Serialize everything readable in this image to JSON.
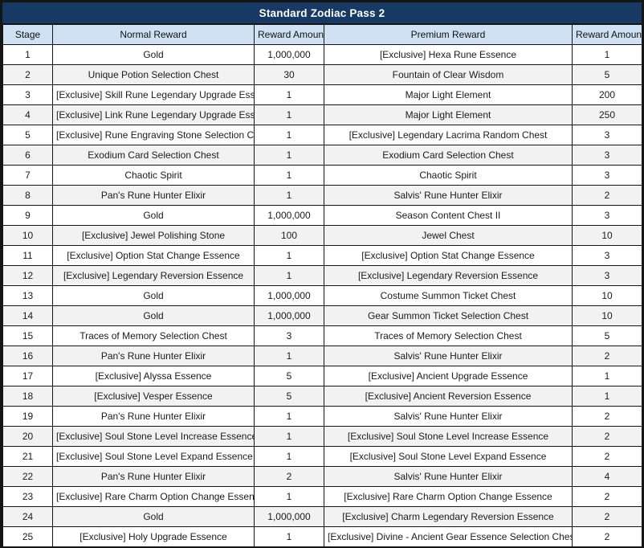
{
  "title_bar": {
    "title": "Standard Zodiac Pass 2"
  },
  "colors": {
    "title_bg": "#163a63",
    "title_text": "#ffffff",
    "header_bg": "#cfe1f3",
    "row_stripe_bg": "#f2f2f2",
    "border": "#151515"
  },
  "table": {
    "columns": [
      "Stage",
      "Normal Reward",
      "Reward Amount",
      "Premium Reward",
      "Reward Amount"
    ],
    "rows": [
      {
        "stage": "1",
        "normal_reward": "Gold",
        "normal_amount": "1,000,000",
        "premium_reward": "[Exclusive] Hexa Rune Essence",
        "premium_amount": "1"
      },
      {
        "stage": "2",
        "normal_reward": "Unique Potion Selection Chest",
        "normal_amount": "30",
        "premium_reward": "Fountain of Clear Wisdom",
        "premium_amount": "5"
      },
      {
        "stage": "3",
        "normal_reward": "[Exclusive] Skill Rune Legendary Upgrade Essence",
        "normal_amount": "1",
        "premium_reward": "Major Light Element",
        "premium_amount": "200"
      },
      {
        "stage": "4",
        "normal_reward": "[Exclusive] Link Rune Legendary Upgrade Essence",
        "normal_amount": "1",
        "premium_reward": "Major Light Element",
        "premium_amount": "250"
      },
      {
        "stage": "5",
        "normal_reward": "[Exclusive] Rune Engraving Stone Selection Chest",
        "normal_amount": "1",
        "premium_reward": "[Exclusive] Legendary Lacrima Random Chest",
        "premium_amount": "3"
      },
      {
        "stage": "6",
        "normal_reward": "Exodium Card Selection Chest",
        "normal_amount": "1",
        "premium_reward": "Exodium Card Selection Chest",
        "premium_amount": "3"
      },
      {
        "stage": "7",
        "normal_reward": "Chaotic Spirit",
        "normal_amount": "1",
        "premium_reward": "Chaotic Spirit",
        "premium_amount": "3"
      },
      {
        "stage": "8",
        "normal_reward": "Pan's Rune Hunter Elixir",
        "normal_amount": "1",
        "premium_reward": "Salvis' Rune Hunter Elixir",
        "premium_amount": "2"
      },
      {
        "stage": "9",
        "normal_reward": "Gold",
        "normal_amount": "1,000,000",
        "premium_reward": "Season Content Chest II",
        "premium_amount": "3"
      },
      {
        "stage": "10",
        "normal_reward": "[Exclusive] Jewel Polishing Stone",
        "normal_amount": "100",
        "premium_reward": "Jewel Chest",
        "premium_amount": "10"
      },
      {
        "stage": "11",
        "normal_reward": "[Exclusive] Option Stat Change Essence",
        "normal_amount": "1",
        "premium_reward": "[Exclusive] Option Stat Change Essence",
        "premium_amount": "3"
      },
      {
        "stage": "12",
        "normal_reward": "[Exclusive] Legendary Reversion Essence",
        "normal_amount": "1",
        "premium_reward": "[Exclusive] Legendary Reversion Essence",
        "premium_amount": "3"
      },
      {
        "stage": "13",
        "normal_reward": "Gold",
        "normal_amount": "1,000,000",
        "premium_reward": "Costume Summon Ticket Chest",
        "premium_amount": "10"
      },
      {
        "stage": "14",
        "normal_reward": "Gold",
        "normal_amount": "1,000,000",
        "premium_reward": "Gear Summon Ticket Selection Chest",
        "premium_amount": "10"
      },
      {
        "stage": "15",
        "normal_reward": "Traces of Memory Selection Chest",
        "normal_amount": "3",
        "premium_reward": "Traces of Memory Selection Chest",
        "premium_amount": "5"
      },
      {
        "stage": "16",
        "normal_reward": "Pan's Rune Hunter Elixir",
        "normal_amount": "1",
        "premium_reward": "Salvis' Rune Hunter Elixir",
        "premium_amount": "2"
      },
      {
        "stage": "17",
        "normal_reward": "[Exclusive] Alyssa Essence",
        "normal_amount": "5",
        "premium_reward": "[Exclusive] Ancient Upgrade Essence",
        "premium_amount": "1"
      },
      {
        "stage": "18",
        "normal_reward": "[Exclusive] Vesper Essence",
        "normal_amount": "5",
        "premium_reward": "[Exclusive] Ancient Reversion Essence",
        "premium_amount": "1"
      },
      {
        "stage": "19",
        "normal_reward": "Pan's Rune Hunter Elixir",
        "normal_amount": "1",
        "premium_reward": "Salvis' Rune Hunter Elixir",
        "premium_amount": "2"
      },
      {
        "stage": "20",
        "normal_reward": "[Exclusive] Soul Stone Level Increase Essence",
        "normal_amount": "1",
        "premium_reward": "[Exclusive] Soul Stone Level Increase Essence",
        "premium_amount": "2"
      },
      {
        "stage": "21",
        "normal_reward": "[Exclusive] Soul Stone Level Expand Essence",
        "normal_amount": "1",
        "premium_reward": "[Exclusive] Soul Stone Level Expand Essence",
        "premium_amount": "2"
      },
      {
        "stage": "22",
        "normal_reward": "Pan's Rune Hunter Elixir",
        "normal_amount": "2",
        "premium_reward": "Salvis' Rune Hunter Elixir",
        "premium_amount": "4"
      },
      {
        "stage": "23",
        "normal_reward": "[Exclusive] Rare Charm Option Change Essence",
        "normal_amount": "1",
        "premium_reward": "[Exclusive] Rare Charm Option Change Essence",
        "premium_amount": "2"
      },
      {
        "stage": "24",
        "normal_reward": "Gold",
        "normal_amount": "1,000,000",
        "premium_reward": "[Exclusive] Charm Legendary Reversion Essence",
        "premium_amount": "2"
      },
      {
        "stage": "25",
        "normal_reward": "[Exclusive] Holy Upgrade Essence",
        "normal_amount": "1",
        "premium_reward": "[Exclusive] Divine - Ancient Gear Essence Selection Chest",
        "premium_amount": "2"
      }
    ]
  }
}
